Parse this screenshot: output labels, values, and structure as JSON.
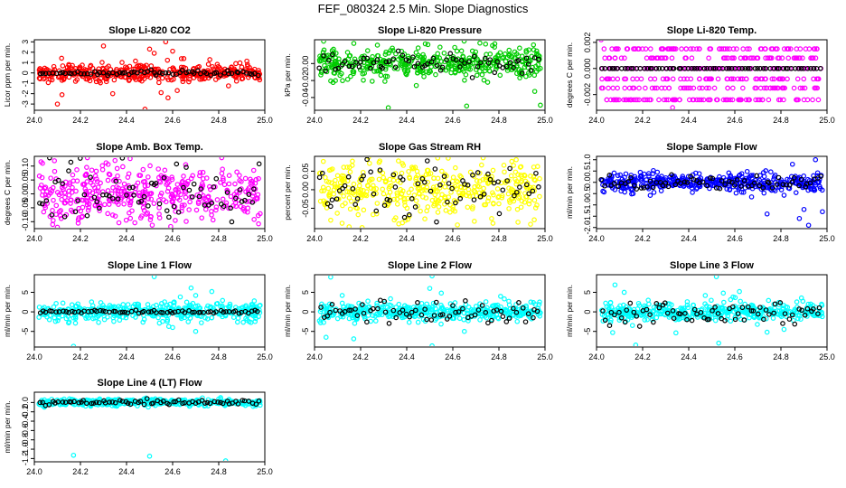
{
  "figure_title": "FEF_080324  2.5 Min. Slope Diagnostics",
  "chart_data": [
    {
      "type": "scatter",
      "title": "Slope Li-820 CO2",
      "ylabel": "Licor ppm per min.",
      "color": "#ff0000",
      "xlim": [
        24.0,
        25.0
      ],
      "ylim": [
        -3.6,
        3.2
      ],
      "yticks": [
        -3,
        -2,
        -1,
        0,
        1,
        2,
        3
      ],
      "ytick_labels": [
        "-3",
        "-2",
        "-1",
        "0",
        "1",
        "2",
        "3"
      ],
      "xticks": [
        24.0,
        24.2,
        24.4,
        24.6,
        24.8,
        25.0
      ],
      "xtick_labels": [
        "24.0",
        "24.2",
        "24.4",
        "24.6",
        "24.8",
        "25.0"
      ],
      "spread": 0.45,
      "outliers": [
        [
          24.1,
          -3.0
        ],
        [
          24.12,
          -2.1
        ],
        [
          24.3,
          2.6
        ],
        [
          24.34,
          -2.0
        ],
        [
          24.48,
          -3.5
        ],
        [
          24.5,
          2.3
        ],
        [
          24.52,
          1.9
        ],
        [
          24.55,
          -1.9
        ],
        [
          24.57,
          3.0
        ],
        [
          24.58,
          -2.4
        ],
        [
          24.62,
          -1.7
        ],
        [
          24.6,
          2.1
        ]
      ],
      "black_spread": 0.1
    },
    {
      "type": "scatter",
      "title": "Slope Li-820 Pressure",
      "ylabel": "kPa per min.",
      "color": "#00cc00",
      "xlim": [
        24.0,
        25.0
      ],
      "ylim": [
        -0.055,
        0.028
      ],
      "yticks": [
        -0.04,
        -0.02,
        0.0
      ],
      "ytick_labels": [
        "-0.04",
        "-0.02",
        "0.00"
      ],
      "xticks": [
        24.0,
        24.2,
        24.4,
        24.6,
        24.8,
        25.0
      ],
      "xtick_labels": [
        "24.0",
        "24.2",
        "24.4",
        "24.6",
        "24.8",
        "25.0"
      ],
      "spread": 0.01,
      "outliers": [
        [
          24.32,
          -0.052
        ],
        [
          24.66,
          -0.05
        ],
        [
          24.98,
          -0.049
        ],
        [
          24.95,
          0.022
        ]
      ],
      "black_spread": 0.006
    },
    {
      "type": "scatter",
      "title": "Slope Li-820 Temp.",
      "ylabel": "degrees C per min.",
      "color": "#ff00ff",
      "xlim": [
        24.0,
        25.0
      ],
      "ylim": [
        -0.0032,
        0.0022
      ],
      "yticks": [
        -0.002,
        0.0,
        0.002
      ],
      "ytick_labels": [
        "-0.002",
        "0.000",
        "0.002"
      ],
      "xticks": [
        24.0,
        24.2,
        24.4,
        24.6,
        24.8,
        25.0
      ],
      "xtick_labels": [
        "24.0",
        "24.2",
        "24.4",
        "24.6",
        "24.8",
        "25.0"
      ],
      "discrete": [
        0.0015,
        0.0008,
        0.0,
        -0.0008,
        -0.0015,
        -0.0024
      ],
      "outliers": [
        [
          24.33,
          -0.003
        ],
        [
          24.02,
          0.0022
        ]
      ],
      "black_spread": 0.0
    },
    {
      "type": "scatter",
      "title": "Slope Amb. Box Temp.",
      "ylabel": "degrees C per min.",
      "color": "#ff00ff",
      "xlim": [
        24.0,
        25.0
      ],
      "ylim": [
        -0.125,
        0.135
      ],
      "yticks": [
        -0.1,
        -0.05,
        0.0,
        0.05,
        0.1
      ],
      "ytick_labels": [
        "-0.10",
        "-0.05",
        "0.00",
        "0.05",
        "0.10"
      ],
      "xticks": [
        24.0,
        24.2,
        24.4,
        24.6,
        24.8,
        25.0
      ],
      "xtick_labels": [
        "24.0",
        "24.2",
        "24.4",
        "24.6",
        "24.8",
        "25.0"
      ],
      "spread": 0.055,
      "outliers": [
        [
          24.23,
          0.13
        ],
        [
          24.35,
          0.12
        ],
        [
          24.1,
          -0.12
        ]
      ],
      "black_spread": 0.05
    },
    {
      "type": "scatter",
      "title": "Slope Gas Stream RH",
      "ylabel": "percent per min.",
      "color": "#ffff00",
      "xlim": [
        24.0,
        25.0
      ],
      "ylim": [
        -0.105,
        0.09
      ],
      "yticks": [
        -0.05,
        0.0,
        0.05
      ],
      "ytick_labels": [
        "-0.05",
        "0.00",
        "0.05"
      ],
      "xticks": [
        24.0,
        24.2,
        24.4,
        24.6,
        24.8,
        25.0
      ],
      "xtick_labels": [
        "24.0",
        "24.2",
        "24.4",
        "24.6",
        "24.8",
        "25.0"
      ],
      "spread": 0.045,
      "outliers": [
        [
          24.58,
          0.085
        ],
        [
          24.15,
          -0.1
        ],
        [
          24.62,
          -0.095
        ]
      ],
      "black_spread": 0.035
    },
    {
      "type": "scatter",
      "title": "Slope Sample Flow",
      "ylabel": "ml/min per min.",
      "color": "#0000ff",
      "xlim": [
        24.0,
        25.0
      ],
      "ylim": [
        -2.05,
        1.15
      ],
      "yticks": [
        -2.0,
        -1.5,
        -1.0,
        -0.5,
        0.0,
        0.5,
        1.0
      ],
      "ytick_labels": [
        "-2.0",
        "-1.5",
        "-1.0",
        "-0.5",
        "0.0",
        "0.5",
        "1.0"
      ],
      "xticks": [
        24.0,
        24.2,
        24.4,
        24.6,
        24.8,
        25.0
      ],
      "xtick_labels": [
        "24.0",
        "24.2",
        "24.4",
        "24.6",
        "24.8",
        "25.0"
      ],
      "spread": 0.22,
      "outliers": [
        [
          24.95,
          1.0
        ],
        [
          24.92,
          -1.9
        ],
        [
          24.88,
          -1.6
        ],
        [
          24.74,
          -1.4
        ],
        [
          24.98,
          -1.3
        ],
        [
          24.85,
          0.8
        ],
        [
          24.9,
          -1.2
        ]
      ],
      "black_spread": 0.15
    },
    {
      "type": "scatter",
      "title": "Slope Line 1 Flow",
      "ylabel": "ml/min per min.",
      "color": "#00ffff",
      "xlim": [
        24.0,
        25.0
      ],
      "ylim": [
        -9.0,
        9.5
      ],
      "yticks": [
        -5,
        0,
        5
      ],
      "ytick_labels": [
        "-5",
        "0",
        "5"
      ],
      "xticks": [
        24.0,
        24.2,
        24.4,
        24.6,
        24.8,
        25.0
      ],
      "xtick_labels": [
        "24.0",
        "24.2",
        "24.4",
        "24.6",
        "24.8",
        "25.0"
      ],
      "spread": 1.2,
      "outliers": [
        [
          24.17,
          -8.8
        ],
        [
          24.52,
          9.0
        ],
        [
          24.68,
          6.1
        ],
        [
          24.7,
          -5.0
        ],
        [
          24.77,
          5.2
        ],
        [
          24.7,
          4.2
        ],
        [
          24.6,
          -4.0
        ]
      ],
      "black_spread": 0.2
    },
    {
      "type": "scatter",
      "title": "Slope Line 2 Flow",
      "ylabel": "ml/min per min.",
      "color": "#00ffff",
      "xlim": [
        24.0,
        25.0
      ],
      "ylim": [
        -9.0,
        9.5
      ],
      "yticks": [
        -5,
        0,
        5
      ],
      "ytick_labels": [
        "-5",
        "0",
        "5"
      ],
      "xticks": [
        24.0,
        24.2,
        24.4,
        24.6,
        24.8,
        25.0
      ],
      "xtick_labels": [
        "24.0",
        "24.2",
        "24.4",
        "24.6",
        "24.8",
        "25.0"
      ],
      "spread": 1.3,
      "outliers": [
        [
          24.07,
          8.9
        ],
        [
          24.05,
          -6.5
        ],
        [
          24.17,
          -6.9
        ],
        [
          24.12,
          4.2
        ],
        [
          24.51,
          9.2
        ],
        [
          24.51,
          -8.7
        ],
        [
          24.5,
          6.0
        ],
        [
          24.55,
          4.8
        ],
        [
          24.65,
          -5.0
        ]
      ],
      "black_spread": 1.5
    },
    {
      "type": "scatter",
      "title": "Slope Line 3 Flow",
      "ylabel": "ml/min per min.",
      "color": "#00ffff",
      "xlim": [
        24.0,
        25.0
      ],
      "ylim": [
        -9.0,
        9.5
      ],
      "yticks": [
        -5,
        0,
        5
      ],
      "ytick_labels": [
        "-5",
        "0",
        "5"
      ],
      "xticks": [
        24.0,
        24.2,
        24.4,
        24.6,
        24.8,
        25.0
      ],
      "xtick_labels": [
        "24.0",
        "24.2",
        "24.4",
        "24.6",
        "24.8",
        "25.0"
      ],
      "spread": 1.3,
      "outliers": [
        [
          24.08,
          6.9
        ],
        [
          24.12,
          5.0
        ],
        [
          24.07,
          -5.3
        ],
        [
          24.17,
          -8.5
        ],
        [
          24.52,
          9.0
        ],
        [
          24.53,
          -8.0
        ],
        [
          24.55,
          4.8
        ],
        [
          24.74,
          -5.2
        ],
        [
          24.62,
          5.2
        ]
      ],
      "black_spread": 1.4
    },
    {
      "type": "scatter",
      "title": "Slope Line 4 (LT) Flow",
      "ylabel": "ml/min per min.",
      "color": "#00ffff",
      "xlim": [
        24.0,
        25.0
      ],
      "ylim": [
        -1.27,
        0.22
      ],
      "yticks": [
        -1.2,
        -1.0,
        -0.8,
        -0.6,
        -0.4,
        -0.2,
        0.0
      ],
      "ytick_labels": [
        "-1.2",
        "-1.0",
        "-0.8",
        "-0.6",
        "-0.4",
        "-0.2",
        "0.0"
      ],
      "xticks": [
        24.0,
        24.2,
        24.4,
        24.6,
        24.8,
        25.0
      ],
      "xtick_labels": [
        "24.0",
        "24.2",
        "24.4",
        "24.6",
        "24.8",
        "25.0"
      ],
      "spread": 0.04,
      "outliers": [
        [
          24.17,
          -1.13
        ],
        [
          24.5,
          -1.15
        ],
        [
          24.83,
          -1.25
        ]
      ],
      "black_spread": 0.03
    }
  ]
}
